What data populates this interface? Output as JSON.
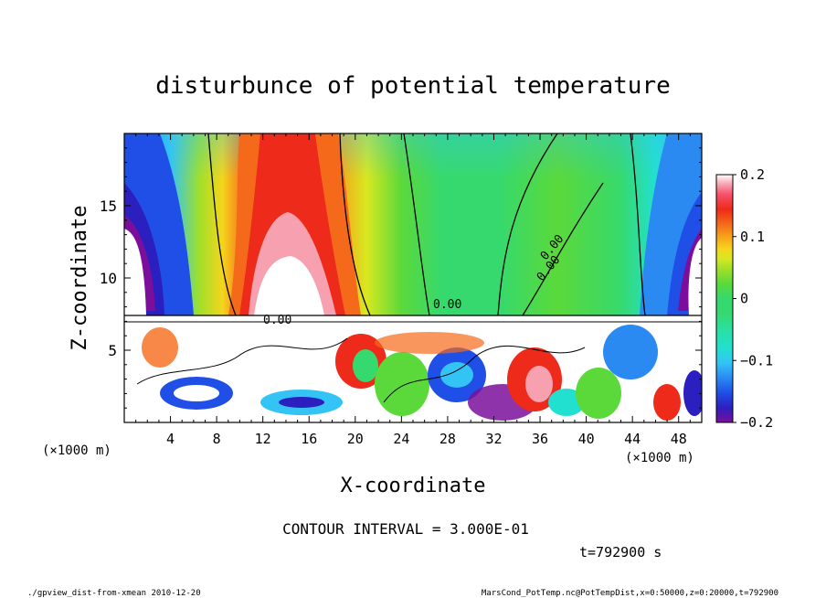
{
  "chart_data": {
    "type": "heatmap",
    "title": "disturbunce of potential temperature",
    "xlabel": "X-coordinate",
    "ylabel": "Z-coordinate",
    "x_unit": "(×1000 m)",
    "x_unit_right": "(×1000 m)",
    "xlim": [
      0,
      50
    ],
    "ylim": [
      0,
      20
    ],
    "x_ticks": [
      4,
      8,
      12,
      16,
      20,
      24,
      28,
      32,
      36,
      40,
      44,
      48
    ],
    "y_ticks": [
      5,
      10,
      15
    ],
    "colorbar": {
      "range": [
        -0.2,
        0.2
      ],
      "tick_values": [
        0.2,
        0.1,
        0,
        -0.1,
        -0.2
      ],
      "tick_labels": [
        "0.2",
        "0.1",
        "0",
        "−0.1",
        "−0.2"
      ],
      "colors": [
        "#7b0f9c",
        "#2c1fbf",
        "#1f4fe6",
        "#2a8af2",
        "#33c4f5",
        "#22e0d0",
        "#29e0a6",
        "#36d96d",
        "#5bd93a",
        "#a0e02a",
        "#d8e820",
        "#f5d51c",
        "#f7a21a",
        "#f56a1a",
        "#ee2a1a",
        "#f5506a",
        "#f7a0b0",
        "#ffffff"
      ]
    },
    "contour_labels": [
      "0.00",
      "0.00",
      "0.00",
      "0.00"
    ],
    "annotations": {
      "contour_interval": "CONTOUR INTERVAL = 3.000E-01",
      "time": "t=792900 s"
    }
  },
  "footer": {
    "left": "./gpview_dist-from-xmean  2010-12-20",
    "right": "MarsCond_PotTemp.nc@PotTempDist,x=0:50000,z=0:20000,t=792900"
  }
}
